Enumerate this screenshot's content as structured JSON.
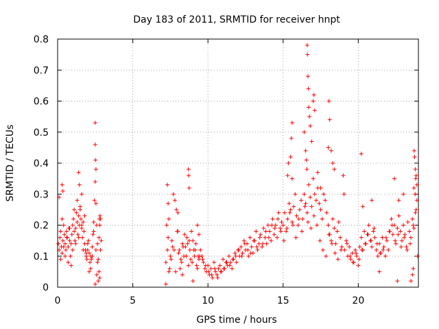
{
  "chart_data": {
    "type": "scatter",
    "title": "Day 183 of 2011, SRMTID for receiver hnpt",
    "xlabel": "GPS time / hours",
    "ylabel": "SRMTID / TECUs",
    "xlim": [
      0,
      24
    ],
    "ylim": [
      0,
      0.8
    ],
    "xticks": [
      0,
      5,
      10,
      15,
      20
    ],
    "yticks": [
      0,
      0.1,
      0.2,
      0.3,
      0.4,
      0.5,
      0.6,
      0.7,
      0.8
    ],
    "xtick_labels": [
      "0",
      "5",
      "10",
      "15",
      "20"
    ],
    "ytick_labels": [
      "0",
      "0.1",
      "0.2",
      "0.3",
      "0.4",
      "0.5",
      "0.6",
      "0.7",
      "0.8"
    ],
    "grid": true,
    "marker": "+",
    "color": "#ff0000",
    "series": [
      {
        "name": "SRMTID",
        "x": [
          0.05,
          0.1,
          0.15,
          0.2,
          0.25,
          0.3,
          0.35,
          0.4,
          0.45,
          0.5,
          0.55,
          0.6,
          0.65,
          0.7,
          0.75,
          0.8,
          0.85,
          0.9,
          0.95,
          1.0,
          1.05,
          1.1,
          1.15,
          1.2,
          1.25,
          1.3,
          1.35,
          1.4,
          1.45,
          1.5,
          1.55,
          1.6,
          1.65,
          1.7,
          1.75,
          1.8,
          1.85,
          1.9,
          1.95,
          2.0,
          2.05,
          2.1,
          2.15,
          2.2,
          2.25,
          2.3,
          2.35,
          2.4,
          2.45,
          2.5,
          2.55,
          2.6,
          2.65,
          2.7,
          2.75,
          2.8,
          2.85,
          2.9,
          0.1,
          0.3,
          0.5,
          0.7,
          0.9,
          1.1,
          1.3,
          1.5,
          1.7,
          1.9,
          2.1,
          2.3,
          2.5,
          2.6,
          2.7,
          0.2,
          0.4,
          0.6,
          0.8,
          1.0,
          1.2,
          1.4,
          1.6,
          1.8,
          2.0,
          2.2,
          2.4,
          2.55,
          2.65,
          2.75,
          2.85,
          2.5,
          2.5,
          2.52,
          2.55,
          0.3,
          0.35,
          1.4,
          1.45,
          1.6,
          2.8,
          2.78,
          2.82,
          7.2,
          7.3,
          7.4,
          7.5,
          7.6,
          7.7,
          7.8,
          7.9,
          8.0,
          8.1,
          8.2,
          8.3,
          8.4,
          8.5,
          8.6,
          8.7,
          8.8,
          8.9,
          9.0,
          9.1,
          9.2,
          9.3,
          9.4,
          9.5,
          7.25,
          7.45,
          7.65,
          7.85,
          8.05,
          8.25,
          8.45,
          8.65,
          8.85,
          9.05,
          9.25,
          9.45,
          7.35,
          7.55,
          7.75,
          7.95,
          8.15,
          8.35,
          8.55,
          8.75,
          8.95,
          9.15,
          9.35,
          7.3,
          7.35,
          7.4,
          8.7,
          8.72,
          8.75,
          9.3,
          9.4,
          7.2,
          8.0,
          8.3,
          9.0,
          9.6,
          9.7,
          9.8,
          9.9,
          10.0,
          10.1,
          10.2,
          10.3,
          10.4,
          10.5,
          10.6,
          10.7,
          10.8,
          10.9,
          11.0,
          11.1,
          11.2,
          11.3,
          11.4,
          11.5,
          11.6,
          11.7,
          11.8,
          11.9,
          12.0,
          12.1,
          12.2,
          12.3,
          12.4,
          12.5,
          12.6,
          12.7,
          12.8,
          12.9,
          13.0,
          13.1,
          13.2,
          13.3,
          13.4,
          13.5,
          13.6,
          13.7,
          13.8,
          13.9,
          14.0,
          14.1,
          14.2,
          14.3,
          14.4,
          14.5,
          14.6,
          14.7,
          14.8,
          14.9,
          9.65,
          9.85,
          10.05,
          10.25,
          10.45,
          10.65,
          10.85,
          11.05,
          11.25,
          11.45,
          11.65,
          11.85,
          12.05,
          12.25,
          12.45,
          12.65,
          12.85,
          13.05,
          13.25,
          13.45,
          13.65,
          13.85,
          14.05,
          14.25,
          14.45,
          14.65,
          14.85,
          15.0,
          15.1,
          15.2,
          15.3,
          15.4,
          15.5,
          15.6,
          15.7,
          15.8,
          15.9,
          16.0,
          16.1,
          16.2,
          16.3,
          16.4,
          16.5,
          16.6,
          16.7,
          16.8,
          16.9,
          17.0,
          17.1,
          17.2,
          17.3,
          17.4,
          17.5,
          17.6,
          17.7,
          17.8,
          17.9,
          18.0,
          18.1,
          18.2,
          18.3,
          18.4,
          18.5,
          18.6,
          18.7,
          18.8,
          18.9,
          15.05,
          15.25,
          15.45,
          15.65,
          15.85,
          16.05,
          16.25,
          16.45,
          16.65,
          16.85,
          17.05,
          17.25,
          17.45,
          17.65,
          17.85,
          18.05,
          18.25,
          18.45,
          18.65,
          18.85,
          16.6,
          16.62,
          16.65,
          16.68,
          16.7,
          16.75,
          16.8,
          16.9,
          17.0,
          17.05,
          17.1,
          15.5,
          15.55,
          15.6,
          15.6,
          15.3,
          15.35,
          18.0,
          18.05,
          18.1,
          18.2,
          18.3,
          18.4,
          17.3,
          17.5,
          16.4,
          16.5,
          16.55,
          16.58,
          19.0,
          19.1,
          19.2,
          19.3,
          19.4,
          19.5,
          19.6,
          19.7,
          19.8,
          19.9,
          20.0,
          20.1,
          20.2,
          20.3,
          20.4,
          20.5,
          20.6,
          20.7,
          20.8,
          20.9,
          21.0,
          21.1,
          21.2,
          21.3,
          21.4,
          21.5,
          21.6,
          21.7,
          21.8,
          21.9,
          22.0,
          22.1,
          22.2,
          22.3,
          22.4,
          22.5,
          22.6,
          22.7,
          22.8,
          22.9,
          23.0,
          23.1,
          23.2,
          23.3,
          23.4,
          23.5,
          23.6,
          23.7,
          23.8,
          23.9,
          19.05,
          19.25,
          19.45,
          19.65,
          19.85,
          20.05,
          20.25,
          20.45,
          20.65,
          20.85,
          21.05,
          21.25,
          21.45,
          21.65,
          21.85,
          22.05,
          22.25,
          22.45,
          22.65,
          22.85,
          23.05,
          23.25,
          23.45,
          23.65,
          23.85,
          23.7,
          23.72,
          23.75,
          23.8,
          23.85,
          23.9,
          23.78,
          23.82,
          20.2,
          20.3,
          20.9,
          21.4,
          22.4,
          22.6,
          22.7,
          23.0,
          23.5,
          23.6,
          23.65,
          23.95
        ],
        "y": [
          0.14,
          0.12,
          0.16,
          0.18,
          0.13,
          0.11,
          0.15,
          0.2,
          0.17,
          0.14,
          0.12,
          0.18,
          0.16,
          0.13,
          0.19,
          0.15,
          0.1,
          0.14,
          0.17,
          0.2,
          0.22,
          0.18,
          0.15,
          0.19,
          0.24,
          0.21,
          0.17,
          0.23,
          0.2,
          0.25,
          0.22,
          0.19,
          0.16,
          0.21,
          0.18,
          0.14,
          0.12,
          0.1,
          0.09,
          0.12,
          0.15,
          0.11,
          0.08,
          0.06,
          0.09,
          0.13,
          0.17,
          0.21,
          0.28,
          0.34,
          0.27,
          0.2,
          0.14,
          0.09,
          0.05,
          0.03,
          0.12,
          0.15,
          0.29,
          0.22,
          0.1,
          0.08,
          0.07,
          0.25,
          0.28,
          0.26,
          0.12,
          0.11,
          0.05,
          0.1,
          0.01,
          0.04,
          0.02,
          0.09,
          0.13,
          0.16,
          0.19,
          0.12,
          0.14,
          0.16,
          0.2,
          0.23,
          0.14,
          0.1,
          0.18,
          0.12,
          0.08,
          0.16,
          0.22,
          0.53,
          0.46,
          0.41,
          0.38,
          0.33,
          0.31,
          0.37,
          0.33,
          0.3,
          0.2,
          0.22,
          0.23,
          0.08,
          0.12,
          0.05,
          0.1,
          0.15,
          0.3,
          0.28,
          0.25,
          0.18,
          0.12,
          0.09,
          0.14,
          0.1,
          0.13,
          0.16,
          0.07,
          0.12,
          0.18,
          0.15,
          0.1,
          0.14,
          0.06,
          0.09,
          0.12,
          0.2,
          0.06,
          0.13,
          0.05,
          0.11,
          0.08,
          0.17,
          0.14,
          0.09,
          0.12,
          0.07,
          0.1,
          0.16,
          0.09,
          0.12,
          0.18,
          0.06,
          0.13,
          0.1,
          0.15,
          0.08,
          0.12,
          0.1,
          0.33,
          0.27,
          0.22,
          0.38,
          0.36,
          0.32,
          0.2,
          0.17,
          0.01,
          0.24,
          0.04,
          0.02,
          0.1,
          0.08,
          0.06,
          0.05,
          0.07,
          0.04,
          0.06,
          0.03,
          0.08,
          0.05,
          0.04,
          0.06,
          0.07,
          0.05,
          0.09,
          0.06,
          0.08,
          0.07,
          0.1,
          0.08,
          0.06,
          0.09,
          0.11,
          0.08,
          0.12,
          0.1,
          0.13,
          0.11,
          0.15,
          0.12,
          0.14,
          0.1,
          0.16,
          0.13,
          0.11,
          0.15,
          0.18,
          0.12,
          0.14,
          0.17,
          0.13,
          0.19,
          0.16,
          0.14,
          0.2,
          0.18,
          0.15,
          0.22,
          0.17,
          0.2,
          0.16,
          0.24,
          0.19,
          0.21,
          0.09,
          0.07,
          0.05,
          0.04,
          0.06,
          0.03,
          0.05,
          0.06,
          0.08,
          0.07,
          0.09,
          0.1,
          0.12,
          0.1,
          0.14,
          0.12,
          0.11,
          0.15,
          0.13,
          0.16,
          0.14,
          0.18,
          0.16,
          0.2,
          0.19,
          0.22,
          0.18,
          0.2,
          0.24,
          0.18,
          0.22,
          0.27,
          0.25,
          0.21,
          0.26,
          0.3,
          0.23,
          0.2,
          0.25,
          0.28,
          0.22,
          0.3,
          0.27,
          0.24,
          0.33,
          0.29,
          0.26,
          0.35,
          0.3,
          0.28,
          0.32,
          0.27,
          0.25,
          0.22,
          0.3,
          0.28,
          0.24,
          0.2,
          0.17,
          0.15,
          0.22,
          0.19,
          0.14,
          0.18,
          0.21,
          0.16,
          0.13,
          0.15,
          0.19,
          0.24,
          0.2,
          0.16,
          0.22,
          0.18,
          0.26,
          0.21,
          0.19,
          0.23,
          0.2,
          0.15,
          0.12,
          0.1,
          0.17,
          0.14,
          0.11,
          0.09,
          0.12,
          0.78,
          0.75,
          0.68,
          0.64,
          0.58,
          0.55,
          0.52,
          0.47,
          0.6,
          0.62,
          0.57,
          0.42,
          0.48,
          0.53,
          0.35,
          0.36,
          0.4,
          0.45,
          0.6,
          0.54,
          0.44,
          0.4,
          0.38,
          0.37,
          0.32,
          0.5,
          0.44,
          0.41,
          0.38,
          0.36,
          0.12,
          0.15,
          0.1,
          0.13,
          0.09,
          0.11,
          0.08,
          0.12,
          0.1,
          0.07,
          0.13,
          0.16,
          0.12,
          0.18,
          0.14,
          0.17,
          0.2,
          0.15,
          0.13,
          0.18,
          0.16,
          0.12,
          0.1,
          0.14,
          0.11,
          0.16,
          0.13,
          0.1,
          0.15,
          0.12,
          0.18,
          0.22,
          0.17,
          0.2,
          0.14,
          0.19,
          0.23,
          0.18,
          0.15,
          0.2,
          0.17,
          0.13,
          0.21,
          0.18,
          0.16,
          0.22,
          0.19,
          0.24,
          0.28,
          0.3,
          0.14,
          0.1,
          0.08,
          0.11,
          0.09,
          0.12,
          0.14,
          0.17,
          0.15,
          0.19,
          0.14,
          0.11,
          0.12,
          0.16,
          0.18,
          0.2,
          0.15,
          0.17,
          0.13,
          0.16,
          0.12,
          0.14,
          0.2,
          0.25,
          0.32,
          0.44,
          0.42,
          0.38,
          0.36,
          0.33,
          0.3,
          0.35,
          0.43,
          0.26,
          0.28,
          0.05,
          0.35,
          0.02,
          0.28,
          0.3,
          0.02,
          0.04,
          0.06,
          0.1
        ]
      }
    ]
  }
}
